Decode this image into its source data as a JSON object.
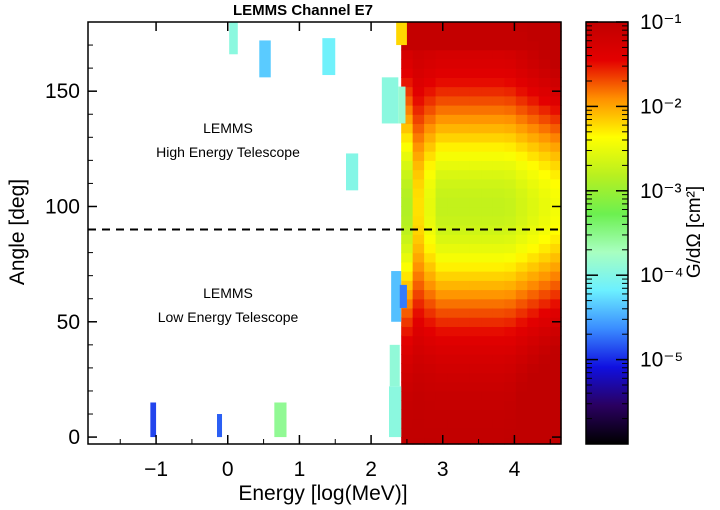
{
  "chart_data": {
    "type": "heatmap",
    "title": "LEMMS Channel E7",
    "xlabel": "Energy [log(MeV)]",
    "ylabel": "Angle [deg]",
    "xlim": [
      -1.95,
      4.65
    ],
    "ylim": [
      -3,
      180
    ],
    "x_ticks": [
      -1,
      0,
      1,
      2,
      3,
      4
    ],
    "x_tick_labels": [
      "−1",
      "0",
      "1",
      "2",
      "3",
      "4"
    ],
    "y_ticks": [
      0,
      50,
      100,
      150
    ],
    "y_tick_labels": [
      "0",
      "50",
      "100",
      "150"
    ],
    "divider": {
      "angle": 90,
      "style": "dashed"
    },
    "annotations": [
      {
        "lines": [
          "LEMMS",
          "High Energy Telescope"
        ],
        "x": 0.75,
        "y": 125
      },
      {
        "lines": [
          "LEMMS",
          "Low Energy Telescope"
        ],
        "x": 0.75,
        "y": 56
      }
    ],
    "colorbar": {
      "label": "G/dΩ [cm²]",
      "scale": "log",
      "range": [
        1e-06,
        0.1
      ],
      "tick_labels": [
        "10⁻¹",
        "10⁻²",
        "10⁻³",
        "10⁻⁴",
        "10⁻⁵"
      ],
      "tick_values": [
        -1,
        -2,
        -3,
        -4,
        -5
      ],
      "colormap": [
        "#000000",
        "#2a0060",
        "#1010e0",
        "#3a8cff",
        "#6cf0ff",
        "#a8ffc0",
        "#6cf050",
        "#b8f020",
        "#ffff00",
        "#ff9000",
        "#e40000",
        "#c00000"
      ]
    },
    "energy_bins": [
      2.42,
      2.58,
      2.74,
      2.9,
      3.06,
      3.22,
      3.38,
      3.54,
      3.7,
      3.86,
      4.02,
      4.18,
      4.34,
      4.5,
      4.65
    ],
    "angle_bins": [
      -3,
      0,
      4,
      8,
      12,
      16,
      20,
      24,
      28,
      32,
      36,
      40,
      44,
      48,
      52,
      56,
      60,
      64,
      68,
      72,
      76,
      80,
      84,
      88,
      92,
      96,
      100,
      104,
      108,
      112,
      116,
      120,
      124,
      128,
      132,
      136,
      140,
      144,
      148,
      152,
      156,
      160,
      164,
      168,
      172,
      176,
      180
    ],
    "main_region_log10_values": "computed from a smooth model (high at 0 and 180 deg, lowest near 80-120 deg); see script",
    "isolated_cells": [
      {
        "x": [
          -1.08,
          -1.0
        ],
        "y": [
          0,
          15
        ],
        "log10_value": -4.9
      },
      {
        "x": [
          -0.15,
          -0.08
        ],
        "y": [
          0,
          10
        ],
        "log10_value": -4.8
      },
      {
        "x": [
          0.65,
          0.82
        ],
        "y": [
          0,
          15
        ],
        "log10_value": -3.55
      },
      {
        "x": [
          0.02,
          0.14
        ],
        "y": [
          166,
          180
        ],
        "log10_value": -3.95
      },
      {
        "x": [
          0.44,
          0.6
        ],
        "y": [
          156,
          172
        ],
        "log10_value": -4.35
      },
      {
        "x": [
          1.32,
          1.5
        ],
        "y": [
          157,
          173
        ],
        "log10_value": -4.15
      },
      {
        "x": [
          1.65,
          1.82
        ],
        "y": [
          107,
          123
        ],
        "log10_value": -4.0
      },
      {
        "x": [
          2.15,
          2.38
        ],
        "y": [
          136,
          156
        ],
        "log10_value": -3.95
      },
      {
        "x": [
          2.38,
          2.48
        ],
        "y": [
          136,
          152
        ],
        "log10_value": -3.85
      },
      {
        "x": [
          2.25,
          2.42
        ],
        "y": [
          0,
          22
        ],
        "log10_value": -3.95
      },
      {
        "x": [
          2.26,
          2.4
        ],
        "y": [
          22,
          40
        ],
        "log10_value": -3.9
      },
      {
        "x": [
          2.28,
          2.42
        ],
        "y": [
          50,
          72
        ],
        "log10_value": -4.4
      },
      {
        "x": [
          2.4,
          2.5
        ],
        "y": [
          56,
          66
        ],
        "log10_value": -4.7
      },
      {
        "x": [
          2.35,
          2.5
        ],
        "y": [
          170,
          180
        ],
        "log10_value": -2.2
      }
    ]
  }
}
